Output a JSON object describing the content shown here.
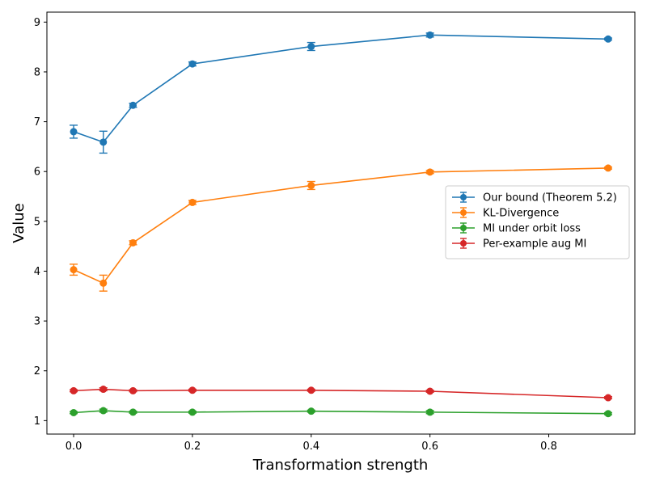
{
  "chart_data": {
    "type": "line",
    "title": "",
    "xlabel": "Transformation strength",
    "ylabel": "Value",
    "xlim": [
      -0.045,
      0.945
    ],
    "ylim": [
      0.73,
      9.2
    ],
    "xticks": [
      0.0,
      0.2,
      0.4,
      0.6,
      0.8
    ],
    "xtick_labels": [
      "0.0",
      "0.2",
      "0.4",
      "0.6",
      "0.8"
    ],
    "yticks": [
      1,
      2,
      3,
      4,
      5,
      6,
      7,
      8,
      9
    ],
    "ytick_labels": [
      "1",
      "2",
      "3",
      "4",
      "5",
      "6",
      "7",
      "8",
      "9"
    ],
    "grid": false,
    "legend_position": "center-right",
    "x": [
      0.0,
      0.05,
      0.1,
      0.2,
      0.4,
      0.6,
      0.9
    ],
    "series": [
      {
        "name": "Our bound (Theorem 5.2)",
        "color": "#1f77b4",
        "values": [
          6.8,
          6.59,
          7.33,
          8.16,
          8.51,
          8.74,
          8.66
        ],
        "errors": [
          0.13,
          0.22,
          0.04,
          0.04,
          0.08,
          0.04,
          0.02
        ]
      },
      {
        "name": "KL-Divergence",
        "color": "#ff7f0e",
        "values": [
          4.03,
          3.76,
          4.57,
          5.38,
          5.72,
          5.99,
          6.07
        ],
        "errors": [
          0.11,
          0.16,
          0.04,
          0.04,
          0.08,
          0.03,
          0.02
        ]
      },
      {
        "name": "MI under orbit loss",
        "color": "#2ca02c",
        "values": [
          1.16,
          1.2,
          1.17,
          1.17,
          1.19,
          1.17,
          1.14
        ],
        "errors": [
          0.02,
          0.03,
          0.02,
          0.02,
          0.02,
          0.03,
          0.02
        ]
      },
      {
        "name": "Per-example aug MI",
        "color": "#d62728",
        "values": [
          1.6,
          1.63,
          1.6,
          1.61,
          1.61,
          1.59,
          1.46
        ],
        "errors": [
          0.02,
          0.03,
          0.02,
          0.02,
          0.02,
          0.02,
          0.02
        ]
      }
    ]
  }
}
